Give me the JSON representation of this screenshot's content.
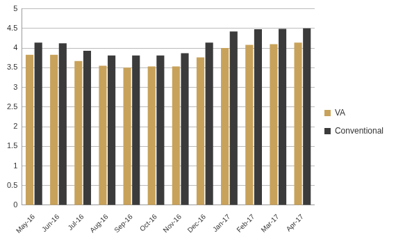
{
  "chart_data": {
    "type": "bar",
    "categories": [
      "May-16",
      "Jun-16",
      "Jul-16",
      "Aug-16",
      "Sep-16",
      "Oct-16",
      "Nov-16",
      "Dec-16",
      "Jan-17",
      "Feb-17",
      "Mar-17",
      "Apr-17"
    ],
    "series": [
      {
        "name": "VA",
        "color": "#c8a25a",
        "values": [
          3.83,
          3.83,
          3.67,
          3.55,
          3.5,
          3.53,
          3.53,
          3.76,
          4.0,
          4.08,
          4.1,
          4.14
        ]
      },
      {
        "name": "Conventional",
        "color": "#3b3b3b",
        "values": [
          4.14,
          4.12,
          3.93,
          3.81,
          3.81,
          3.81,
          3.87,
          4.14,
          4.42,
          4.48,
          4.49,
          4.5
        ]
      }
    ],
    "ylim": [
      0,
      5
    ],
    "yticks": [
      0,
      0.5,
      1,
      1.5,
      2,
      2.5,
      3,
      3.5,
      4,
      4.5,
      5
    ],
    "grid": true,
    "legend": "right"
  }
}
